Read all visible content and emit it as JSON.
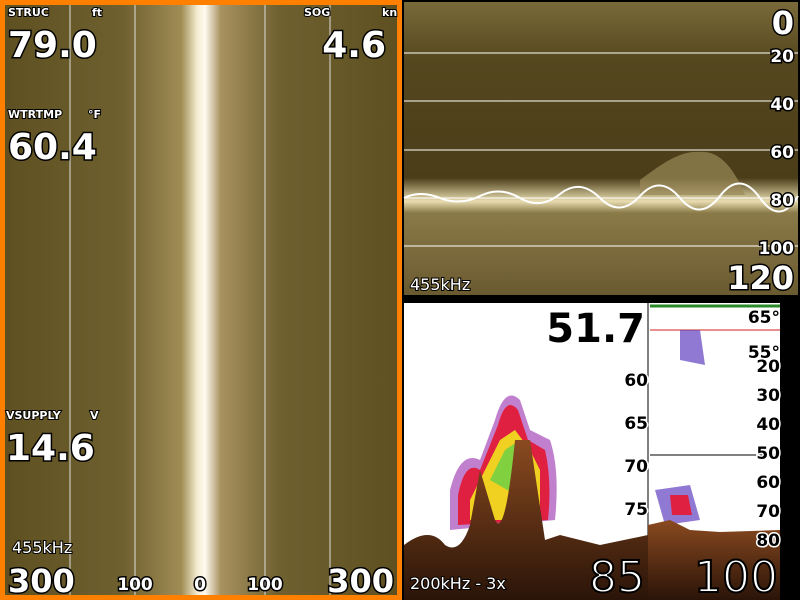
{
  "side_scan": {
    "readouts": [
      {
        "label": "STRUC",
        "unit": "ft",
        "value": "79.0"
      },
      {
        "label": "WTRTMP",
        "unit": "°F",
        "value": "60.4"
      },
      {
        "label": "VSUPPLY",
        "unit": "V",
        "value": "14.6"
      }
    ],
    "sog": {
      "label": "SOG",
      "unit": "kn",
      "value": "4.6"
    },
    "frequency": "455kHz",
    "range_left": "300",
    "range_right": "300",
    "scale_labels": [
      "100",
      "0",
      "100"
    ]
  },
  "down_scan": {
    "top": "0",
    "depth_labels": [
      "20",
      "40",
      "60",
      "80",
      "100"
    ],
    "frequency": "455kHz",
    "range": "120"
  },
  "sonar": {
    "depth": "51.7",
    "zoom_labels": [
      "60",
      "65",
      "70",
      "75"
    ],
    "temperatures": [
      "65°",
      "55°"
    ],
    "depth_labels": [
      "20",
      "30",
      "40",
      "50",
      "60",
      "70",
      "80"
    ],
    "mode": "200kHz - 3x",
    "zoom_range": "85",
    "range": "100"
  }
}
